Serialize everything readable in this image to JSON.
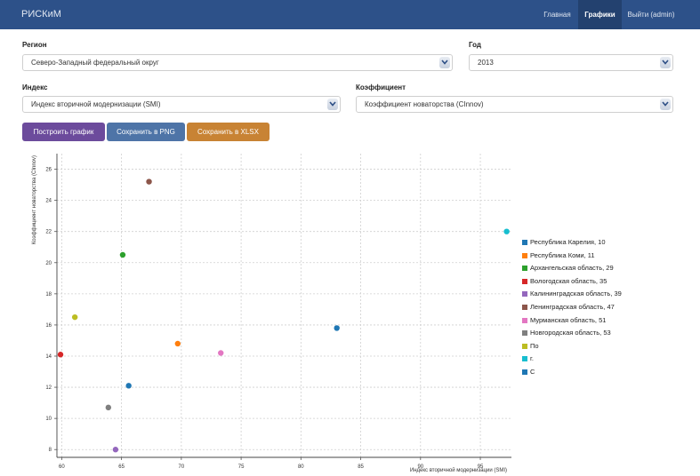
{
  "navbar": {
    "brand": "РИСКиМ",
    "items": [
      {
        "label": "Главная",
        "active": false
      },
      {
        "label": "Графики",
        "active": true
      },
      {
        "label": "Выйти (admin)",
        "active": false
      }
    ]
  },
  "form": {
    "region": {
      "label": "Регион",
      "value": "Северо-Западный федеральный округ"
    },
    "year": {
      "label": "Год",
      "value": "2013"
    },
    "index": {
      "label": "Индекс",
      "value": "Индекс вторичной модернизации (SMI)"
    },
    "coefficient": {
      "label": "Коэффициент",
      "value": "Коэффициент новаторства (CInnov)"
    }
  },
  "buttons": {
    "build": "Построить график",
    "save_png": "Сохранить в PNG",
    "save_xlsx": "Сохранить в XLSX"
  },
  "colors": {
    "navbar": "#2d5189",
    "build_button": "#6c4b9c",
    "png_button": "#4e74a7",
    "xlsx_button": "#c88334"
  },
  "legend": {
    "items": [
      {
        "label": "Республика Карелия, 10",
        "color": "#1f77b4"
      },
      {
        "label": "Республика Коми, 11",
        "color": "#ff7f0e"
      },
      {
        "label": "Архангельская область, 29",
        "color": "#2ca02c"
      },
      {
        "label": "Вологодская область, 35",
        "color": "#d62728"
      },
      {
        "label": "Калининградская область, 39",
        "color": "#9467bd"
      },
      {
        "label": "Ленинградская область, 47",
        "color": "#8c564b"
      },
      {
        "label": "Мурманская область, 51",
        "color": "#e377c2"
      },
      {
        "label": "Новгородская область, 53",
        "color": "#7f7f7f"
      },
      {
        "label": "По",
        "color": "#bcbd22"
      },
      {
        "label": "г.",
        "color": "#17becf"
      },
      {
        "label": "С",
        "color": "#1f77b4"
      }
    ]
  },
  "chart_data": {
    "type": "scatter",
    "xlabel": "Индекс вторичной модернизации (SMI)",
    "ylabel": "Коэффициент новаторства (CInnov)",
    "xlim": [
      59.6,
      97.6
    ],
    "ylim": [
      7.5,
      27.0
    ],
    "x_ticks": [
      60,
      65,
      70,
      75,
      80,
      85,
      90,
      95
    ],
    "y_ticks": [
      8,
      10,
      12,
      14,
      16,
      18,
      20,
      22,
      24,
      26
    ],
    "grid": true,
    "legend_position": "right",
    "points": [
      {
        "x": 65.6,
        "y": 12.1,
        "color": "#1f77b4"
      },
      {
        "x": 69.7,
        "y": 14.8,
        "color": "#ff7f0e"
      },
      {
        "x": 65.1,
        "y": 20.5,
        "color": "#2ca02c"
      },
      {
        "x": 59.9,
        "y": 14.1,
        "color": "#d62728"
      },
      {
        "x": 64.5,
        "y": 8.0,
        "color": "#9467bd"
      },
      {
        "x": 67.3,
        "y": 25.2,
        "color": "#8c564b"
      },
      {
        "x": 73.3,
        "y": 14.2,
        "color": "#e377c2"
      },
      {
        "x": 63.9,
        "y": 10.7,
        "color": "#7f7f7f"
      },
      {
        "x": 61.1,
        "y": 16.5,
        "color": "#bcbd22"
      },
      {
        "x": 97.2,
        "y": 22.0,
        "color": "#17becf"
      },
      {
        "x": 83.0,
        "y": 15.8,
        "color": "#1f77b4"
      }
    ]
  }
}
